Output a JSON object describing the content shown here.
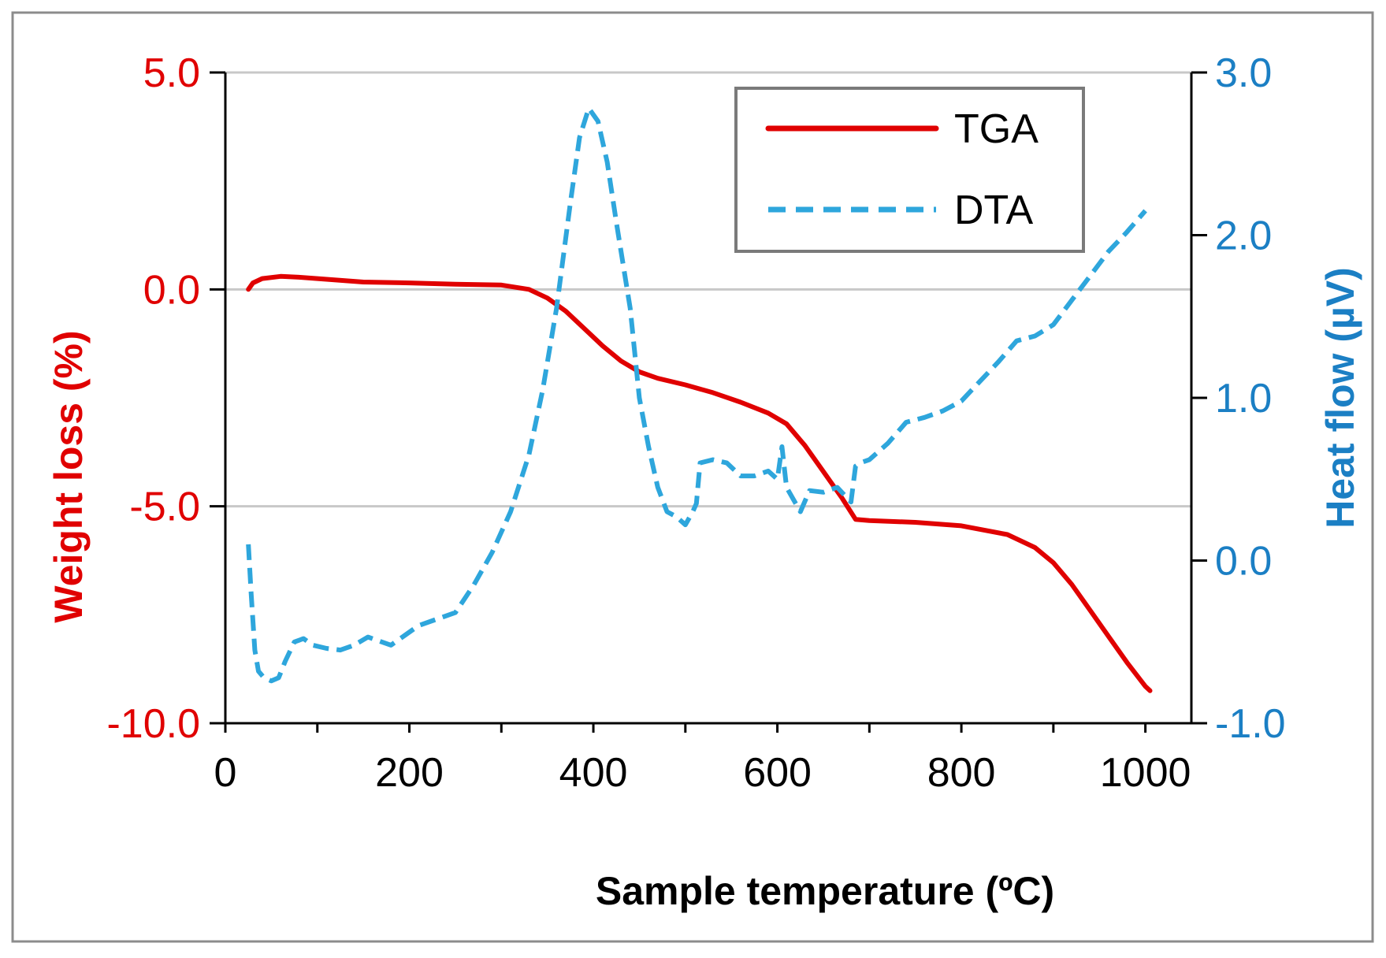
{
  "colors": {
    "tga": "#e00000",
    "dta": "#2ea6dc",
    "right_axis": "#1b7fc4",
    "grid": "#c8c8c8",
    "frame": "#8c8c8c",
    "legend_border": "#7a7a7a",
    "axis": "#000000"
  },
  "chart_data": {
    "type": "line",
    "title": "",
    "xlabel": "Sample temperature (ºC)",
    "ylabel": "Weight loss (%)",
    "y2label": "Heat flow (µV)",
    "xlim": [
      0,
      1050
    ],
    "ylim": [
      -10,
      5
    ],
    "y2lim": [
      -1,
      3
    ],
    "x_ticks": [
      0,
      200,
      400,
      600,
      800,
      1000
    ],
    "x_tick_labels": [
      "0",
      "200",
      "400",
      "600",
      "800",
      "1000"
    ],
    "y_ticks": [
      -10,
      -5,
      0,
      5
    ],
    "y_tick_labels": [
      "-10.0",
      "-5.0",
      "0.0",
      "5.0"
    ],
    "y2_ticks": [
      -1,
      0,
      1,
      2,
      3
    ],
    "y2_tick_labels": [
      "-1.0",
      "0.0",
      "1.0",
      "2.0",
      "3.0"
    ],
    "grid_y": [
      -5,
      0,
      5
    ],
    "legend_position": "top-right",
    "series": [
      {
        "name": "TGA",
        "axis": "left",
        "style": "solid",
        "x": [
          25,
          30,
          40,
          60,
          80,
          100,
          150,
          200,
          250,
          300,
          330,
          350,
          370,
          390,
          410,
          430,
          450,
          470,
          500,
          530,
          560,
          590,
          610,
          630,
          650,
          670,
          685,
          700,
          750,
          800,
          850,
          880,
          900,
          920,
          940,
          960,
          980,
          1000,
          1005
        ],
        "y": [
          0.0,
          0.15,
          0.25,
          0.3,
          0.28,
          0.25,
          0.17,
          0.15,
          0.12,
          0.1,
          0.0,
          -0.2,
          -0.5,
          -0.9,
          -1.3,
          -1.65,
          -1.9,
          -2.05,
          -2.2,
          -2.38,
          -2.6,
          -2.85,
          -3.1,
          -3.6,
          -4.2,
          -4.8,
          -5.3,
          -5.33,
          -5.37,
          -5.45,
          -5.65,
          -5.95,
          -6.3,
          -6.8,
          -7.4,
          -8.0,
          -8.6,
          -9.15,
          -9.25
        ]
      },
      {
        "name": "DTA",
        "axis": "right",
        "style": "dashed",
        "x": [
          25,
          28,
          32,
          36,
          42,
          50,
          58,
          65,
          75,
          85,
          95,
          110,
          125,
          140,
          155,
          170,
          180,
          195,
          210,
          230,
          250,
          270,
          290,
          310,
          330,
          345,
          360,
          375,
          385,
          395,
          405,
          415,
          425,
          440,
          450,
          460,
          470,
          480,
          490,
          500,
          508,
          512,
          516,
          530,
          545,
          560,
          575,
          590,
          600,
          605,
          610,
          620,
          625,
          635,
          650,
          665,
          680,
          685,
          690,
          700,
          720,
          740,
          760,
          780,
          800,
          820,
          840,
          860,
          880,
          900,
          920,
          940,
          960,
          980,
          1000
        ],
        "y": [
          0.1,
          -0.2,
          -0.55,
          -0.68,
          -0.72,
          -0.74,
          -0.72,
          -0.62,
          -0.5,
          -0.48,
          -0.52,
          -0.54,
          -0.55,
          -0.52,
          -0.47,
          -0.5,
          -0.52,
          -0.46,
          -0.4,
          -0.36,
          -0.32,
          -0.15,
          0.05,
          0.3,
          0.65,
          1.05,
          1.55,
          2.2,
          2.6,
          2.78,
          2.7,
          2.45,
          2.08,
          1.55,
          1.0,
          0.7,
          0.45,
          0.3,
          0.27,
          0.22,
          0.3,
          0.35,
          0.6,
          0.62,
          0.6,
          0.52,
          0.52,
          0.55,
          0.5,
          0.7,
          0.45,
          0.35,
          0.3,
          0.43,
          0.42,
          0.45,
          0.36,
          0.58,
          0.6,
          0.62,
          0.72,
          0.85,
          0.88,
          0.92,
          0.98,
          1.1,
          1.22,
          1.35,
          1.38,
          1.45,
          1.6,
          1.75,
          1.9,
          2.02,
          2.15
        ]
      }
    ]
  }
}
